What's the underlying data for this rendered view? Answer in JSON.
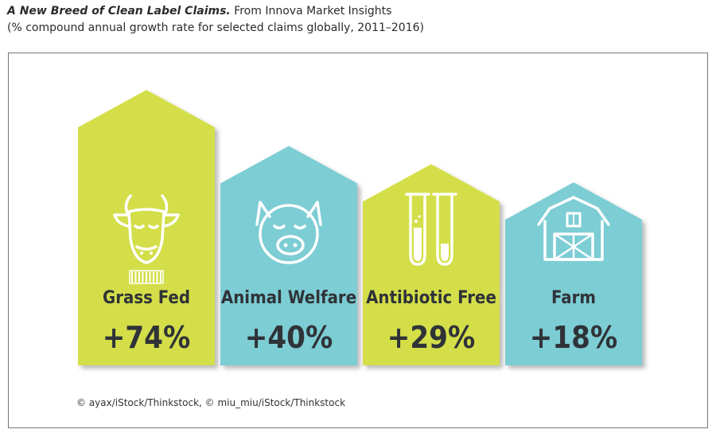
{
  "header": {
    "title": "A New Breed of Clean Label Claims.",
    "source": "From Innova Market Insights",
    "subtitle": "(% compound annual growth rate for selected claims globally, 2011–2016)"
  },
  "credit": "© ayax/iStock/Thinkstock, © miu_miu/iStock/Thinkstock",
  "colors": {
    "green": "#d4de4a",
    "blue": "#7dcdd4",
    "text": "#2f3338"
  },
  "chart_data": {
    "type": "bar",
    "categories": [
      "Grass Fed",
      "Animal Welfare",
      "Antibiotic Free",
      "Farm"
    ],
    "values": [
      74,
      40,
      29,
      18
    ],
    "value_labels": [
      "+74%",
      "+40%",
      "+29%",
      "+18%"
    ],
    "icons": [
      "cow-icon",
      "pig-icon",
      "test-tubes-icon",
      "barn-icon"
    ],
    "bar_colors": [
      "#d4de4a",
      "#7dcdd4",
      "#d4de4a",
      "#7dcdd4"
    ],
    "title": "A New Breed of Clean Label Claims.",
    "subtitle": "(% compound annual growth rate for selected claims globally, 2011–2016)",
    "xlabel": "",
    "ylabel": "",
    "grid": false,
    "legend": "none"
  }
}
